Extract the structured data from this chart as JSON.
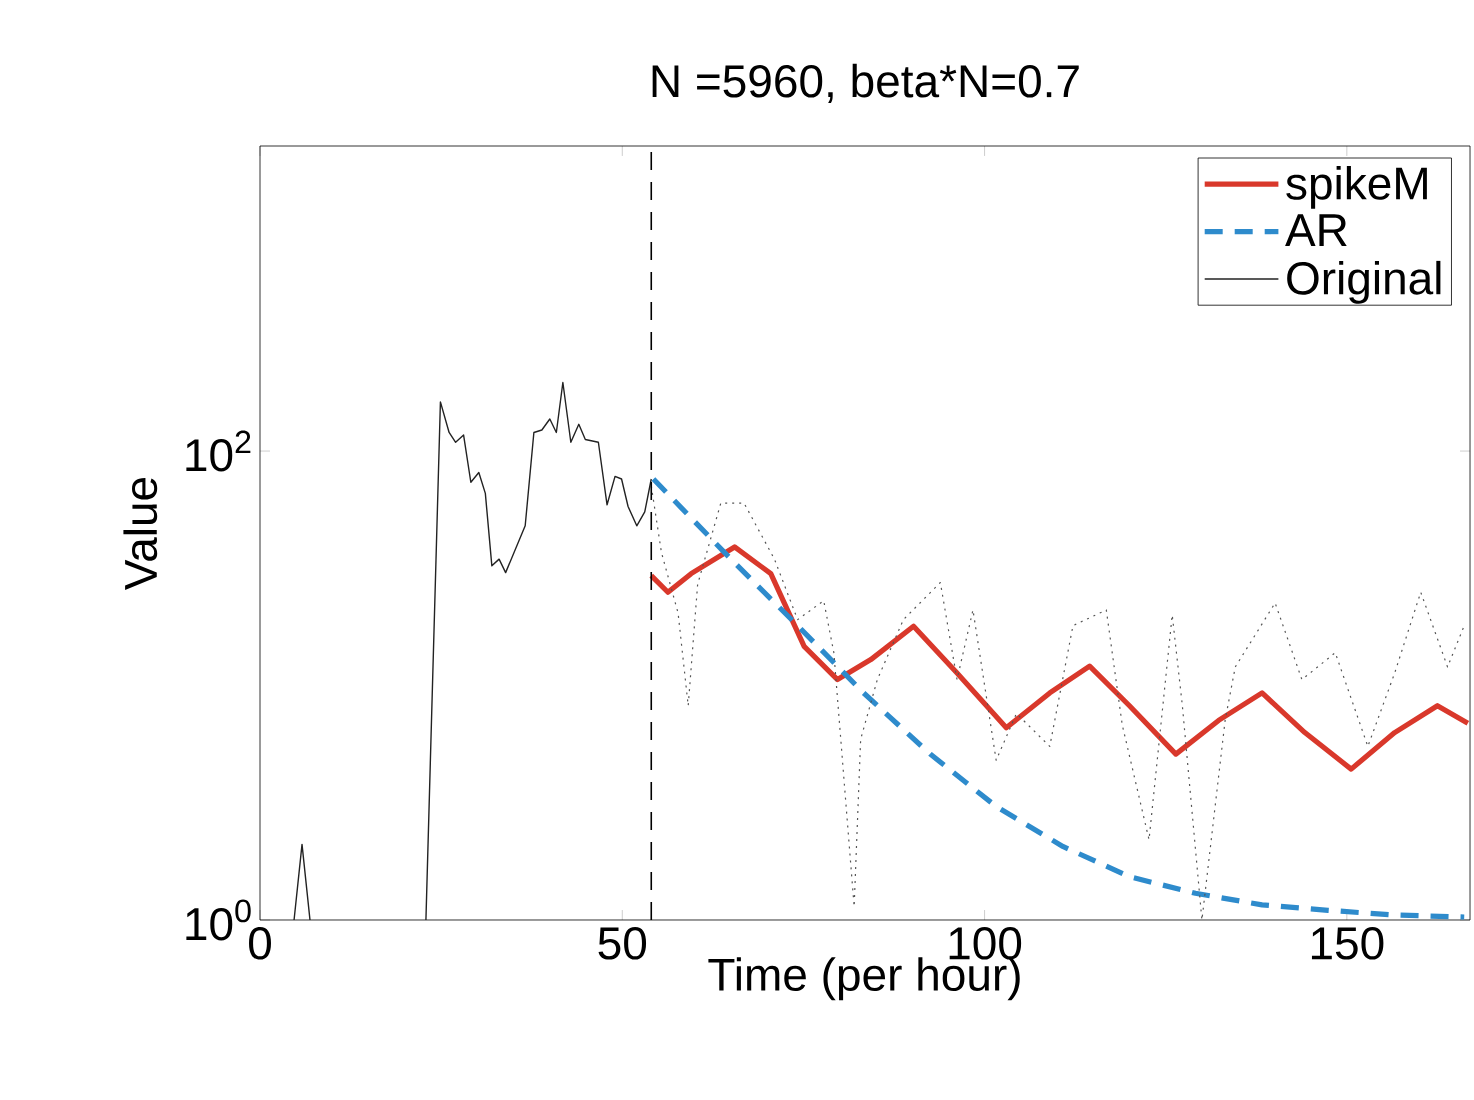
{
  "chart_data": {
    "type": "line",
    "title": "N =5960, beta*N=0.7",
    "xlabel": "Time (per hour)",
    "ylabel": "Value",
    "log": "y",
    "xlim": [
      0,
      167
    ],
    "ylim": [
      1,
      2000
    ],
    "xticks": [
      0,
      50,
      100,
      150
    ],
    "yticks": [
      {
        "value": 1,
        "label": "10$^{0}$"
      },
      {
        "value": 100,
        "label": "10$^{2}$"
      }
    ],
    "grid": false,
    "legend": "top right",
    "ref_lines": [
      {
        "axis": "x",
        "value": 54,
        "color": "#000000",
        "line_style": "dashed"
      }
    ],
    "series": [
      {
        "name": "spikeM",
        "color": "#d9382b",
        "line_style": "solid",
        "x": [
          54,
          56.3,
          59.5,
          65.5,
          70.5,
          75.1,
          79.7,
          84.3,
          90.2,
          96.2,
          103.0,
          109.0,
          114.5,
          120.0,
          126.4,
          132.3,
          138.3,
          144.2,
          150.6,
          156.6,
          162.5,
          166.7
        ],
        "values": [
          29.4,
          25,
          30,
          39,
          30,
          14.7,
          10.6,
          12.9,
          17.9,
          11.3,
          6.6,
          9.3,
          12.1,
          8.2,
          5.1,
          7.1,
          9.3,
          6.3,
          4.4,
          6.3,
          8.2,
          6.9
        ]
      },
      {
        "name": "AR",
        "color": "#2e8bcc",
        "line_style": "dashed",
        "x": [
          54.3,
          65.0,
          74.2,
          83.3,
          92.5,
          101.6,
          110.8,
          120.0,
          129.1,
          138.3,
          147.4,
          156.6,
          166.2
        ],
        "values": [
          76,
          34.6,
          18,
          9.3,
          5.1,
          3.05,
          2.06,
          1.53,
          1.3,
          1.16,
          1.1,
          1.05,
          1.03
        ]
      },
      {
        "name": "Original",
        "color": "#222222",
        "line_style": "solid",
        "x": [
          4.7,
          5.8,
          6.9,
          15,
          22.9,
          24.9,
          26.1,
          27.0,
          28.1,
          29.1,
          30.2,
          31.1,
          32.0,
          33.0,
          33.9,
          36.6,
          37.8,
          38.9,
          40.0,
          40.9,
          41.8,
          42.9,
          44.0,
          44.9,
          46.7,
          47.9,
          49.0,
          49.9,
          50.8,
          52.0,
          53.1,
          54.0
        ],
        "values": [
          1,
          2.1,
          1,
          null,
          1,
          162,
          120,
          109,
          117,
          73.6,
          81,
          66,
          32.4,
          34.6,
          30.3,
          48,
          120,
          123,
          137,
          120,
          196,
          109,
          130,
          112,
          109,
          59,
          78,
          76,
          58,
          48,
          55,
          76
        ]
      },
      {
        "color": "#555555",
        "line_style": "dotted",
        "x": [
          54,
          55.4,
          57.7,
          59.1,
          60.4,
          63.6,
          66.8,
          71.0,
          74.2,
          77.8,
          79.2,
          82.0,
          82.9,
          85.2,
          88.8,
          93.9,
          96.2,
          98.4,
          101.6,
          104.4,
          109.0,
          112.2,
          116.8,
          119.0,
          122.7,
          125.9,
          127.3,
          130.0,
          133.2,
          134.6,
          140.1,
          143.8,
          148.4,
          152.9,
          156.6,
          160.2,
          163.9,
          166.2
        ],
        "values": [
          71,
          37,
          20.4,
          8.2,
          27,
          60,
          60,
          34.6,
          19.1,
          23,
          13.8,
          1.14,
          5.9,
          10.6,
          19.1,
          27.5,
          10.6,
          21,
          4.8,
          7.6,
          5.5,
          18,
          21,
          6.8,
          2.2,
          20,
          8.2,
          1,
          7.1,
          12,
          22.5,
          10.6,
          13.8,
          5.5,
          11.3,
          25,
          12,
          18
        ]
      }
    ]
  }
}
